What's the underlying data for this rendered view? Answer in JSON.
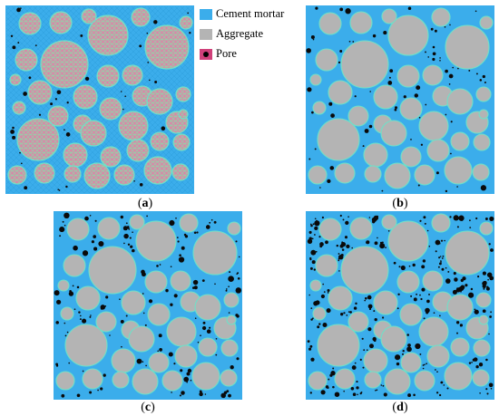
{
  "colors": {
    "mortar": "#3badeb",
    "mortar_dark": "#2e9ede",
    "aggregate": "#b4b4b4",
    "aggregate_pink": "#d68aa8",
    "aggregate_edge": "#6fe0c8",
    "pore": "#0a0a0a"
  },
  "legend": {
    "items": [
      {
        "label": "Cement mortar",
        "swatch": "mortar"
      },
      {
        "label": "Aggregate",
        "swatch": "aggregate"
      },
      {
        "label": "Pore",
        "swatch": "pore"
      }
    ]
  },
  "panels": [
    {
      "caption": "a",
      "caption_open": "(",
      "caption_close": ")",
      "style": "mesh",
      "pore_density": "low"
    },
    {
      "caption": "b",
      "caption_open": "(",
      "caption_close": ")",
      "style": "solid",
      "pore_density": "low"
    },
    {
      "caption": "c",
      "caption_open": "(",
      "caption_close": ")",
      "style": "solid",
      "pore_density": "medium"
    },
    {
      "caption": "d",
      "caption_open": "(",
      "caption_close": ")",
      "style": "solid",
      "pore_density": "high"
    }
  ]
}
